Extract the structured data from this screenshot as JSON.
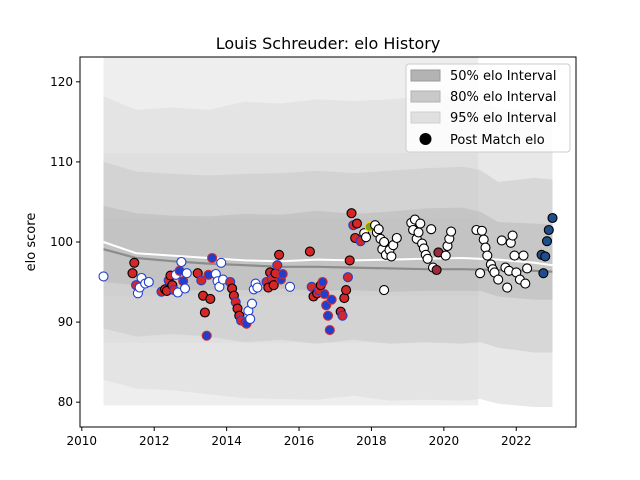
{
  "chart_data": {
    "type": "scatter",
    "title": "Louis Schreuder: elo History",
    "xlabel": "",
    "ylabel": "elo score",
    "xlim": [
      2009.95,
      2023.65
    ],
    "ylim": [
      76.9,
      123.1
    ],
    "x_ticks": [
      2010,
      2012,
      2014,
      2016,
      2018,
      2020,
      2022
    ],
    "y_ticks": [
      80,
      90,
      100,
      110,
      120
    ],
    "grid": false,
    "legend": {
      "placement": "top-right",
      "entries": [
        {
          "label": "50% elo Interval",
          "swatch": "#b3b3b3"
        },
        {
          "label": "80% elo Interval",
          "swatch": "#c9c9c9"
        },
        {
          "label": "95% elo Interval",
          "swatch": "#e0e0e0"
        },
        {
          "label": "Post Match elo",
          "swatch": "#000000"
        }
      ]
    },
    "colors": {
      "band_50": "#b3b3b3",
      "band_80": "#c9c9c9",
      "band_95": "#e0e0e0",
      "mean_line": "#8c8c8c",
      "median_line": "#ffffff",
      "red": "#d62728",
      "blue": "#1f3fd0",
      "white": "#ffffff",
      "green": "#7f9e1a",
      "navy": "#1f4e8c",
      "maroon": "#9c2b3c"
    },
    "bands": {
      "x": [
        2010.6,
        2011.5,
        2012.5,
        2013.5,
        2014.5,
        2015.5,
        2016.5,
        2017.5,
        2018.5,
        2019.5,
        2020.5,
        2021.0,
        2021.5,
        2022.5,
        2023.0
      ],
      "p95_upper": [
        118.2,
        116.5,
        116.8,
        116.5,
        117.5,
        117.3,
        117.8,
        117.6,
        117.8,
        118.2,
        118.3,
        117.5,
        116.7,
        116.3,
        116.2
      ],
      "p80_upper": [
        110.0,
        108.8,
        108.5,
        108.3,
        108.5,
        108.6,
        108.9,
        108.6,
        108.9,
        109.2,
        109.4,
        109.0,
        107.5,
        108.0,
        107.8
      ],
      "p50_upper": [
        104.5,
        103.6,
        103.3,
        103.2,
        103.5,
        103.4,
        103.9,
        103.5,
        103.8,
        104.2,
        104.3,
        103.8,
        102.5,
        102.3,
        102.2
      ],
      "p50_lower": [
        95.0,
        94.6,
        94.0,
        94.0,
        94.0,
        94.2,
        93.9,
        94.0,
        93.8,
        93.9,
        93.9,
        93.9,
        93.2,
        92.8,
        92.8
      ],
      "p80_lower": [
        89.2,
        88.2,
        88.5,
        88.2,
        87.5,
        87.8,
        87.3,
        87.8,
        87.3,
        87.5,
        87.3,
        87.5,
        86.8,
        86.2,
        86.2
      ],
      "p95_lower": [
        82.8,
        81.7,
        81.5,
        81.0,
        80.5,
        80.4,
        80.3,
        80.8,
        80.2,
        80.3,
        80.2,
        80.4,
        79.8,
        79.4,
        79.4
      ],
      "flat_region_end": 2020.95,
      "flat_region_levels": [
        123.1,
        111.1,
        102.9,
        93.3,
        87.4,
        79.6
      ]
    },
    "mean_line": {
      "x": [
        2010.6,
        2011.5,
        2012.5,
        2013.5,
        2014.5,
        2015.5,
        2016.5,
        2017.5,
        2018.5,
        2019.5,
        2020.5,
        2021.5,
        2022.5,
        2023.0
      ],
      "y": [
        99.1,
        98.0,
        97.6,
        97.3,
        97.1,
        96.9,
        96.9,
        96.8,
        96.7,
        96.6,
        96.6,
        96.5,
        96.4,
        96.3
      ]
    },
    "median_line": {
      "x": [
        2010.6,
        2011.5,
        2012.5,
        2013.5,
        2014.5,
        2015.5,
        2016.5,
        2017.5,
        2018.5,
        2019.5,
        2020.5,
        2021.5,
        2022.5,
        2023.0
      ],
      "y": [
        100.0,
        98.6,
        98.3,
        98.0,
        97.7,
        97.6,
        97.8,
        97.7,
        97.8,
        97.9,
        98.0,
        97.8,
        97.4,
        97.1
      ]
    },
    "points": [
      {
        "x": 2010.6,
        "y": 95.7,
        "c": "white"
      },
      {
        "x": 2011.4,
        "y": 96.1,
        "c": "red"
      },
      {
        "x": 2011.45,
        "y": 97.4,
        "c": "red"
      },
      {
        "x": 2011.5,
        "y": 94.6,
        "c": "red"
      },
      {
        "x": 2011.55,
        "y": 93.6,
        "c": "white"
      },
      {
        "x": 2011.6,
        "y": 94.3,
        "c": "white"
      },
      {
        "x": 2011.65,
        "y": 95.5,
        "c": "white"
      },
      {
        "x": 2011.75,
        "y": 94.8,
        "c": "white"
      },
      {
        "x": 2011.85,
        "y": 95.0,
        "c": "white"
      },
      {
        "x": 2012.2,
        "y": 93.8,
        "c": "red"
      },
      {
        "x": 2012.3,
        "y": 94.1,
        "c": "red"
      },
      {
        "x": 2012.35,
        "y": 93.9,
        "c": "red"
      },
      {
        "x": 2012.4,
        "y": 95.2,
        "c": "red"
      },
      {
        "x": 2012.45,
        "y": 95.8,
        "c": "red"
      },
      {
        "x": 2012.5,
        "y": 94.6,
        "c": "red"
      },
      {
        "x": 2012.55,
        "y": 94.0,
        "c": "red"
      },
      {
        "x": 2012.6,
        "y": 95.9,
        "c": "white"
      },
      {
        "x": 2012.65,
        "y": 93.7,
        "c": "white"
      },
      {
        "x": 2012.7,
        "y": 96.4,
        "c": "blue"
      },
      {
        "x": 2012.75,
        "y": 97.5,
        "c": "white"
      },
      {
        "x": 2012.8,
        "y": 95.1,
        "c": "blue"
      },
      {
        "x": 2012.85,
        "y": 94.2,
        "c": "white"
      },
      {
        "x": 2012.9,
        "y": 96.1,
        "c": "white"
      },
      {
        "x": 2013.2,
        "y": 96.1,
        "c": "red"
      },
      {
        "x": 2013.3,
        "y": 95.2,
        "c": "red"
      },
      {
        "x": 2013.35,
        "y": 93.3,
        "c": "red"
      },
      {
        "x": 2013.4,
        "y": 91.2,
        "c": "red"
      },
      {
        "x": 2013.45,
        "y": 88.3,
        "c": "blue"
      },
      {
        "x": 2013.5,
        "y": 95.9,
        "c": "blue"
      },
      {
        "x": 2013.55,
        "y": 92.9,
        "c": "red"
      },
      {
        "x": 2013.6,
        "y": 98.0,
        "c": "blue"
      },
      {
        "x": 2013.7,
        "y": 96.0,
        "c": "white"
      },
      {
        "x": 2013.75,
        "y": 95.1,
        "c": "white"
      },
      {
        "x": 2013.8,
        "y": 94.4,
        "c": "white"
      },
      {
        "x": 2013.85,
        "y": 97.4,
        "c": "white"
      },
      {
        "x": 2013.9,
        "y": 95.3,
        "c": "white"
      },
      {
        "x": 2014.1,
        "y": 95.0,
        "c": "red"
      },
      {
        "x": 2014.15,
        "y": 94.2,
        "c": "red"
      },
      {
        "x": 2014.2,
        "y": 93.3,
        "c": "red"
      },
      {
        "x": 2014.25,
        "y": 92.5,
        "c": "red"
      },
      {
        "x": 2014.3,
        "y": 91.7,
        "c": "red"
      },
      {
        "x": 2014.35,
        "y": 90.8,
        "c": "red"
      },
      {
        "x": 2014.4,
        "y": 90.2,
        "c": "red"
      },
      {
        "x": 2014.5,
        "y": 90.0,
        "c": "blue"
      },
      {
        "x": 2014.55,
        "y": 89.8,
        "c": "blue"
      },
      {
        "x": 2014.6,
        "y": 91.4,
        "c": "white"
      },
      {
        "x": 2014.65,
        "y": 90.4,
        "c": "white"
      },
      {
        "x": 2014.7,
        "y": 92.3,
        "c": "white"
      },
      {
        "x": 2014.75,
        "y": 94.1,
        "c": "white"
      },
      {
        "x": 2014.8,
        "y": 94.8,
        "c": "white"
      },
      {
        "x": 2014.85,
        "y": 94.3,
        "c": "white"
      },
      {
        "x": 2015.1,
        "y": 95.0,
        "c": "red"
      },
      {
        "x": 2015.15,
        "y": 94.3,
        "c": "red"
      },
      {
        "x": 2015.2,
        "y": 96.2,
        "c": "red"
      },
      {
        "x": 2015.25,
        "y": 95.4,
        "c": "red"
      },
      {
        "x": 2015.3,
        "y": 94.6,
        "c": "red"
      },
      {
        "x": 2015.35,
        "y": 96.1,
        "c": "red"
      },
      {
        "x": 2015.4,
        "y": 97.1,
        "c": "red"
      },
      {
        "x": 2015.45,
        "y": 98.4,
        "c": "red"
      },
      {
        "x": 2015.5,
        "y": 95.3,
        "c": "blue"
      },
      {
        "x": 2015.55,
        "y": 96.0,
        "c": "blue"
      },
      {
        "x": 2015.75,
        "y": 94.4,
        "c": "white"
      },
      {
        "x": 2016.3,
        "y": 98.8,
        "c": "red"
      },
      {
        "x": 2016.35,
        "y": 94.4,
        "c": "red"
      },
      {
        "x": 2016.4,
        "y": 93.2,
        "c": "red"
      },
      {
        "x": 2016.5,
        "y": 93.6,
        "c": "red"
      },
      {
        "x": 2016.55,
        "y": 94.0,
        "c": "red"
      },
      {
        "x": 2016.6,
        "y": 94.6,
        "c": "red"
      },
      {
        "x": 2016.65,
        "y": 95.0,
        "c": "blue"
      },
      {
        "x": 2016.7,
        "y": 93.5,
        "c": "blue"
      },
      {
        "x": 2016.75,
        "y": 92.1,
        "c": "blue"
      },
      {
        "x": 2016.8,
        "y": 90.8,
        "c": "blue"
      },
      {
        "x": 2016.85,
        "y": 89.0,
        "c": "blue"
      },
      {
        "x": 2016.9,
        "y": 92.8,
        "c": "blue"
      },
      {
        "x": 2017.15,
        "y": 91.3,
        "c": "red"
      },
      {
        "x": 2017.2,
        "y": 90.8,
        "c": "red"
      },
      {
        "x": 2017.25,
        "y": 93.0,
        "c": "red"
      },
      {
        "x": 2017.3,
        "y": 94.0,
        "c": "red"
      },
      {
        "x": 2017.35,
        "y": 95.6,
        "c": "red"
      },
      {
        "x": 2017.4,
        "y": 97.7,
        "c": "red"
      },
      {
        "x": 2017.45,
        "y": 103.6,
        "c": "red"
      },
      {
        "x": 2017.5,
        "y": 102.1,
        "c": "red"
      },
      {
        "x": 2017.55,
        "y": 100.5,
        "c": "red"
      },
      {
        "x": 2017.6,
        "y": 102.3,
        "c": "red"
      },
      {
        "x": 2017.7,
        "y": 100.1,
        "c": "red"
      },
      {
        "x": 2017.8,
        "y": 101.1,
        "c": "white"
      },
      {
        "x": 2017.85,
        "y": 100.6,
        "c": "white"
      },
      {
        "x": 2017.95,
        "y": 101.9,
        "c": "green"
      },
      {
        "x": 2018.1,
        "y": 102.1,
        "c": "white"
      },
      {
        "x": 2018.15,
        "y": 101.2,
        "c": "white"
      },
      {
        "x": 2018.2,
        "y": 101.6,
        "c": "white"
      },
      {
        "x": 2018.25,
        "y": 100.4,
        "c": "white"
      },
      {
        "x": 2018.3,
        "y": 99.1,
        "c": "white"
      },
      {
        "x": 2018.35,
        "y": 100.0,
        "c": "white"
      },
      {
        "x": 2018.4,
        "y": 98.4,
        "c": "white"
      },
      {
        "x": 2018.5,
        "y": 99.0,
        "c": "white"
      },
      {
        "x": 2018.55,
        "y": 98.2,
        "c": "white"
      },
      {
        "x": 2018.6,
        "y": 99.6,
        "c": "white"
      },
      {
        "x": 2018.7,
        "y": 100.5,
        "c": "white"
      },
      {
        "x": 2018.35,
        "y": 94.0,
        "c": "white"
      },
      {
        "x": 2019.1,
        "y": 102.4,
        "c": "white"
      },
      {
        "x": 2019.15,
        "y": 101.5,
        "c": "white"
      },
      {
        "x": 2019.2,
        "y": 102.8,
        "c": "white"
      },
      {
        "x": 2019.25,
        "y": 100.4,
        "c": "white"
      },
      {
        "x": 2019.3,
        "y": 101.2,
        "c": "white"
      },
      {
        "x": 2019.35,
        "y": 102.3,
        "c": "white"
      },
      {
        "x": 2019.4,
        "y": 99.8,
        "c": "white"
      },
      {
        "x": 2019.45,
        "y": 99.2,
        "c": "white"
      },
      {
        "x": 2019.5,
        "y": 98.4,
        "c": "white"
      },
      {
        "x": 2019.55,
        "y": 97.9,
        "c": "white"
      },
      {
        "x": 2019.65,
        "y": 101.6,
        "c": "white"
      },
      {
        "x": 2019.7,
        "y": 96.8,
        "c": "white"
      },
      {
        "x": 2019.8,
        "y": 96.5,
        "c": "maroon"
      },
      {
        "x": 2019.85,
        "y": 98.7,
        "c": "maroon"
      },
      {
        "x": 2020.05,
        "y": 98.3,
        "c": "white"
      },
      {
        "x": 2020.1,
        "y": 99.5,
        "c": "white"
      },
      {
        "x": 2020.15,
        "y": 100.4,
        "c": "white"
      },
      {
        "x": 2020.2,
        "y": 101.3,
        "c": "white"
      },
      {
        "x": 2020.9,
        "y": 101.5,
        "c": "white"
      },
      {
        "x": 2021.0,
        "y": 96.1,
        "c": "white"
      },
      {
        "x": 2021.05,
        "y": 101.4,
        "c": "white"
      },
      {
        "x": 2021.1,
        "y": 100.3,
        "c": "white"
      },
      {
        "x": 2021.15,
        "y": 99.3,
        "c": "white"
      },
      {
        "x": 2021.2,
        "y": 98.3,
        "c": "white"
      },
      {
        "x": 2021.3,
        "y": 97.2,
        "c": "white"
      },
      {
        "x": 2021.35,
        "y": 96.6,
        "c": "white"
      },
      {
        "x": 2021.4,
        "y": 96.2,
        "c": "white"
      },
      {
        "x": 2021.5,
        "y": 95.3,
        "c": "white"
      },
      {
        "x": 2021.6,
        "y": 100.2,
        "c": "white"
      },
      {
        "x": 2021.7,
        "y": 96.8,
        "c": "white"
      },
      {
        "x": 2021.75,
        "y": 94.3,
        "c": "white"
      },
      {
        "x": 2021.8,
        "y": 96.4,
        "c": "white"
      },
      {
        "x": 2021.85,
        "y": 99.9,
        "c": "white"
      },
      {
        "x": 2021.9,
        "y": 100.8,
        "c": "white"
      },
      {
        "x": 2021.95,
        "y": 98.3,
        "c": "white"
      },
      {
        "x": 2022.0,
        "y": 96.2,
        "c": "white"
      },
      {
        "x": 2022.1,
        "y": 95.3,
        "c": "white"
      },
      {
        "x": 2022.2,
        "y": 98.3,
        "c": "white"
      },
      {
        "x": 2022.25,
        "y": 94.8,
        "c": "white"
      },
      {
        "x": 2022.3,
        "y": 96.7,
        "c": "white"
      },
      {
        "x": 2022.7,
        "y": 98.4,
        "c": "navy"
      },
      {
        "x": 2022.75,
        "y": 96.1,
        "c": "navy"
      },
      {
        "x": 2022.8,
        "y": 98.2,
        "c": "navy"
      },
      {
        "x": 2022.85,
        "y": 100.1,
        "c": "navy"
      },
      {
        "x": 2022.9,
        "y": 101.5,
        "c": "navy"
      },
      {
        "x": 2023.0,
        "y": 103.0,
        "c": "navy"
      }
    ]
  }
}
